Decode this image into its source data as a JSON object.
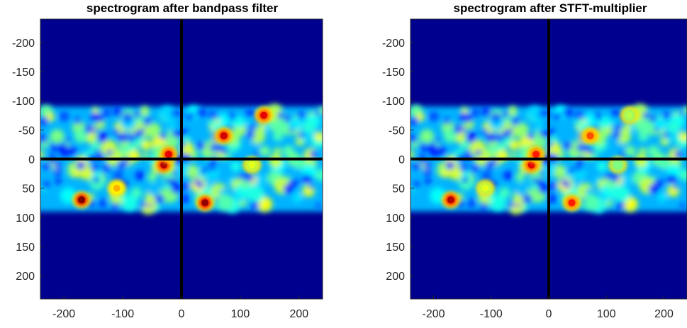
{
  "chart_data": [
    {
      "type": "heatmap",
      "title": "spectrogram after bandpass filter",
      "xlabel": "",
      "ylabel": "",
      "xlim": [
        -240,
        240
      ],
      "ylim": [
        240,
        -240
      ],
      "y_axis_direction": "reversed (negative at top)",
      "x_ticks": [
        "-200",
        "-100",
        "0",
        "100",
        "200"
      ],
      "y_ticks": [
        "-200",
        "-150",
        "-100",
        "-50",
        "0",
        "50",
        "100",
        "150",
        "200"
      ],
      "colormap": "jet",
      "background_color": "#00008f",
      "band_y_range": [
        -90,
        90
      ],
      "axis_lines": {
        "x": 0,
        "y": 0,
        "color": "#000000"
      },
      "hotspots": [
        {
          "x": -170,
          "y": 70,
          "level": 1.0
        },
        {
          "x": -30,
          "y": 10,
          "level": 0.95
        },
        {
          "x": -22,
          "y": -8,
          "level": 0.9
        },
        {
          "x": 40,
          "y": 75,
          "level": 0.98
        },
        {
          "x": 72,
          "y": -40,
          "level": 0.92
        },
        {
          "x": 140,
          "y": -75,
          "level": 0.9
        },
        {
          "x": -110,
          "y": 50,
          "level": 0.7
        },
        {
          "x": 120,
          "y": 10,
          "level": 0.6
        }
      ]
    },
    {
      "type": "heatmap",
      "title": "spectrogram after STFT-multiplier",
      "xlabel": "",
      "ylabel": "",
      "xlim": [
        -240,
        240
      ],
      "ylim": [
        240,
        -240
      ],
      "y_axis_direction": "reversed (negative at top)",
      "x_ticks": [
        "-200",
        "-100",
        "0",
        "100",
        "200"
      ],
      "y_ticks": [
        "-200",
        "-150",
        "-100",
        "-50",
        "0",
        "50",
        "100",
        "150",
        "200"
      ],
      "colormap": "jet",
      "background_color": "#00008f",
      "band_y_range": [
        -90,
        90
      ],
      "axis_lines": {
        "x": 0,
        "y": 0,
        "color": "#000000"
      },
      "hotspots": [
        {
          "x": -170,
          "y": 70,
          "level": 0.95
        },
        {
          "x": -30,
          "y": 10,
          "level": 0.9
        },
        {
          "x": -22,
          "y": -8,
          "level": 0.85
        },
        {
          "x": 40,
          "y": 75,
          "level": 0.85
        },
        {
          "x": 72,
          "y": -40,
          "level": 0.8
        },
        {
          "x": 140,
          "y": -75,
          "level": 0.55
        },
        {
          "x": -110,
          "y": 50,
          "level": 0.6
        },
        {
          "x": 120,
          "y": 10,
          "level": 0.5
        }
      ]
    }
  ]
}
